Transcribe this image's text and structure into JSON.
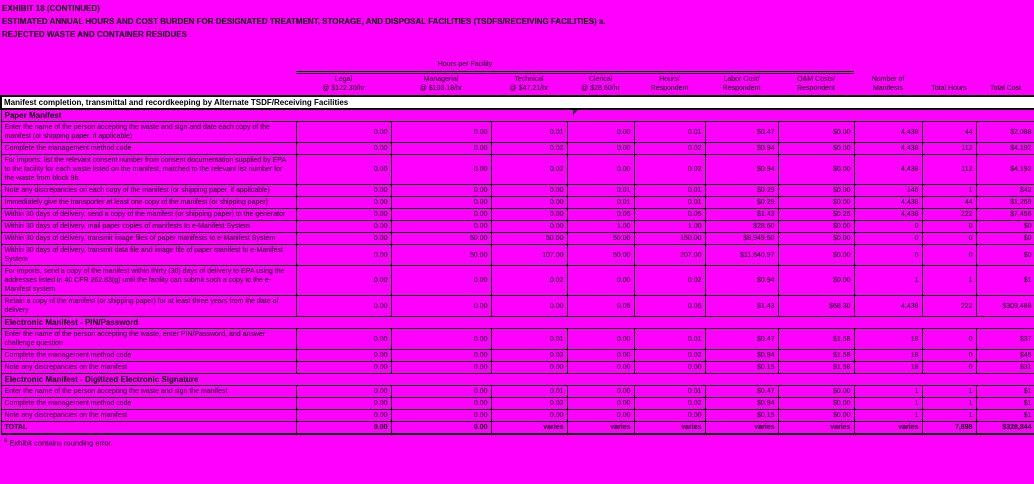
{
  "colors": {
    "background": "#FF00FF",
    "grid": "#000000",
    "section_header_bg": "#FFFFFF",
    "text": "#000000"
  },
  "page": {
    "title_line1": "EXHIBIT 18 (CONTINUED)",
    "title_line2": "ESTIMATED ANNUAL HOURS AND COST BURDEN FOR DESIGNATED TREATMENT, STORAGE, AND DISPOSAL FACILITIES (TSDFS/RECEIVING FACILITIES) a.",
    "title_line3": "REJECTED WASTE AND CONTAINER RESIDUES",
    "footnote_marker": "a",
    "footnote_text": " Exhibit contains rounding error."
  },
  "table": {
    "group_header": "Hours per Facility",
    "columns": [
      "Legal\n@ $122.30/hr",
      "Managerial\n@ $103.18/hr",
      "Technical\n@ $47.21/hr",
      "Clerical\n@ $28.60/hr",
      "Hours/\nRespondent",
      "Labor Cost/\nRespondent",
      "O&M Costs/\nRespondent",
      "Number of\nManifests",
      "Total Hours",
      "Total Cost"
    ],
    "section_title": "Manifest completion, transmittal and recordkeeping by Alternate TSDF/Receiving Facilities",
    "sections": [
      {
        "name": "Paper Manifest",
        "rows": [
          {
            "activity": "Enter the name of the person accepting the waste and sign and date each copy of the manifest (or shipping paper, if applicable)",
            "values": [
              "0.00",
              "0.00",
              "0.01",
              "0.00",
              "0.01",
              "$0.47",
              "$0.00",
              "4,438",
              "44",
              "$2,088"
            ]
          },
          {
            "activity": "Complete the management method code",
            "values": [
              "0.00",
              "0.00",
              "0.02",
              "0.00",
              "0.02",
              "$0.94",
              "$0.00",
              "4,438",
              "112",
              "$4,192"
            ]
          },
          {
            "activity": "For imports: list the relevant consent number from consent documentation supplied by EPA to the facility for each waste listed on the manifest, matched to the relevant list number for the waste from block 9b.",
            "values": [
              "0.00",
              "0.00",
              "0.02",
              "0.00",
              "0.02",
              "$0.94",
              "$0.00",
              "4,438",
              "112",
              "$4,192"
            ]
          },
          {
            "activity": "Note any discrepancies on each copy of the manifest (or shipping paper, if applicable)",
            "values": [
              "0.00",
              "0.00",
              "0.00",
              "0.01",
              "0.01",
              "$0.29",
              "$0.00",
              "146",
              "1",
              "$42"
            ]
          },
          {
            "activity": "Immediately give the transporter at least one copy of the manifest (or shipping paper)",
            "values": [
              "0.00",
              "0.00",
              "0.00",
              "0.01",
              "0.01",
              "$0.29",
              "$0.00",
              "4,438",
              "44",
              "$1,269"
            ]
          },
          {
            "activity": "Within 30 days of delivery, send a copy of the manifest (or shipping paper) to the generator",
            "values": [
              "0.00",
              "0.00",
              "0.00",
              "0.05",
              "0.05",
              "$1.43",
              "$0.25",
              "4,438",
              "222",
              "$7,456"
            ]
          },
          {
            "activity": "Within 30 days of delivery, mail paper copies of manifests to e-Manifest System",
            "values": [
              "0.00",
              "0.00",
              "0.00",
              "1.00",
              "1.00",
              "$28.60",
              "$0.00",
              "0",
              "0",
              "$0"
            ]
          },
          {
            "activity": "Within 30 days of delivery, transmit image files of paper manifests to e-Manifest System",
            "values": [
              "0.00",
              "50.00",
              "50.00",
              "50.00",
              "150.00",
              "$8,949.50",
              "$0.00",
              "0",
              "0",
              "$0"
            ]
          },
          {
            "activity": "Within 30 days of delivery, transmit data file and image file of paper manifest to e-Manifest System",
            "values": [
              "0.00",
              "50.00",
              "107.00",
              "50.00",
              "207.00",
              "$11,640.97",
              "$0.00",
              "0",
              "0",
              "$0"
            ]
          },
          {
            "activity": "For imports, send a copy of the manifest within thirty (30) days of delivery to EPA using the addresses listed in 40 CFR 262.83(g) until the facility can submit such a copy to the e-Manifest system",
            "values": [
              "0.00",
              "0.00",
              "0.02",
              "0.00",
              "0.02",
              "$0.94",
              "$0.00",
              "1",
              "1",
              "$1"
            ]
          },
          {
            "activity": "Retain a copy of the manifest (or shipping paper) for at least three years from the date of delivery",
            "values": [
              "0.00",
              "0.00",
              "0.00",
              "0.05",
              "0.05",
              "$1.43",
              "$68.30",
              "4,438",
              "222",
              "$309,488"
            ]
          }
        ]
      },
      {
        "name": "Electronic Manifest - PIN/Password",
        "rows": [
          {
            "activity": "Enter the name of the person accepting the waste, enter PIN/Password, and answer challenge question",
            "values": [
              "0.00",
              "0.00",
              "0.01",
              "0.00",
              "0.01",
              "$0.47",
              "$1.58",
              "18",
              "0",
              "$37"
            ]
          },
          {
            "activity": "Complete the management method code",
            "values": [
              "0.00",
              "0.00",
              "0.02",
              "0.00",
              "0.02",
              "$0.94",
              "$1.58",
              "18",
              "0",
              "$45"
            ]
          },
          {
            "activity": "Note any discrepancies on the manifest",
            "values": [
              "0.00",
              "0.00",
              "0.00",
              "0.00",
              "0.00",
              "$0.15",
              "$1.58",
              "18",
              "0",
              "$31"
            ]
          }
        ]
      },
      {
        "name": "Electronic Manifest - Digitized Electronic Signature",
        "rows": [
          {
            "activity": "Enter the name of the person accepting the waste and sign the manifest",
            "values": [
              "0.00",
              "0.00",
              "0.01",
              "0.00",
              "0.01",
              "$0.47",
              "$0.00",
              "1",
              "1",
              "$1"
            ]
          },
          {
            "activity": "Complete the management method code",
            "values": [
              "0.00",
              "0.00",
              "0.02",
              "0.00",
              "0.02",
              "$0.94",
              "$0.00",
              "1",
              "1",
              "$1"
            ]
          },
          {
            "activity": "Note any discrepancies on the manifest",
            "values": [
              "0.00",
              "0.00",
              "0.00",
              "0.00",
              "0.00",
              "$0.15",
              "$0.00",
              "1",
              "1",
              "$1"
            ]
          }
        ]
      }
    ],
    "total_row": {
      "label": "TOTAL",
      "values": [
        "0.00",
        "0.00",
        "varies",
        "varies",
        "varies",
        "varies",
        "varies",
        "varies",
        "7,898",
        "$328,844"
      ]
    }
  }
}
